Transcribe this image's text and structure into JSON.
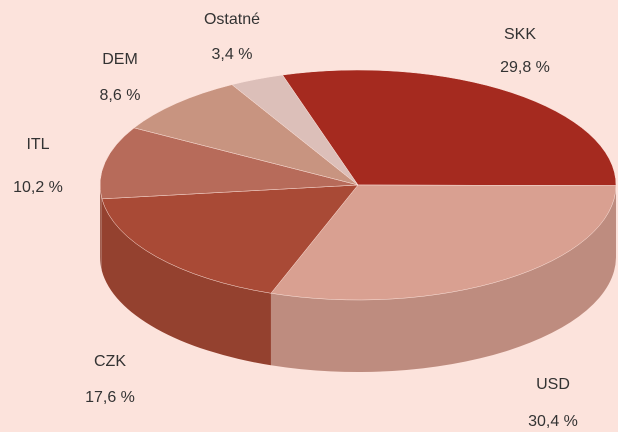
{
  "chart_data": {
    "type": "pie",
    "categories": [
      "SKK",
      "USD",
      "CZK",
      "ITL",
      "DEM",
      "Ostatné"
    ],
    "values": [
      29.8,
      30.4,
      17.6,
      10.2,
      8.6,
      3.4
    ],
    "value_labels": [
      "29,8 %",
      "30,4 %",
      "17,6 %",
      "10,2 %",
      "8,6 %",
      "3,4 %"
    ],
    "colors": [
      "#a52a1f",
      "#d9a091",
      "#a94a36",
      "#b76b5a",
      "#c89480",
      "#dcbfb9"
    ]
  }
}
